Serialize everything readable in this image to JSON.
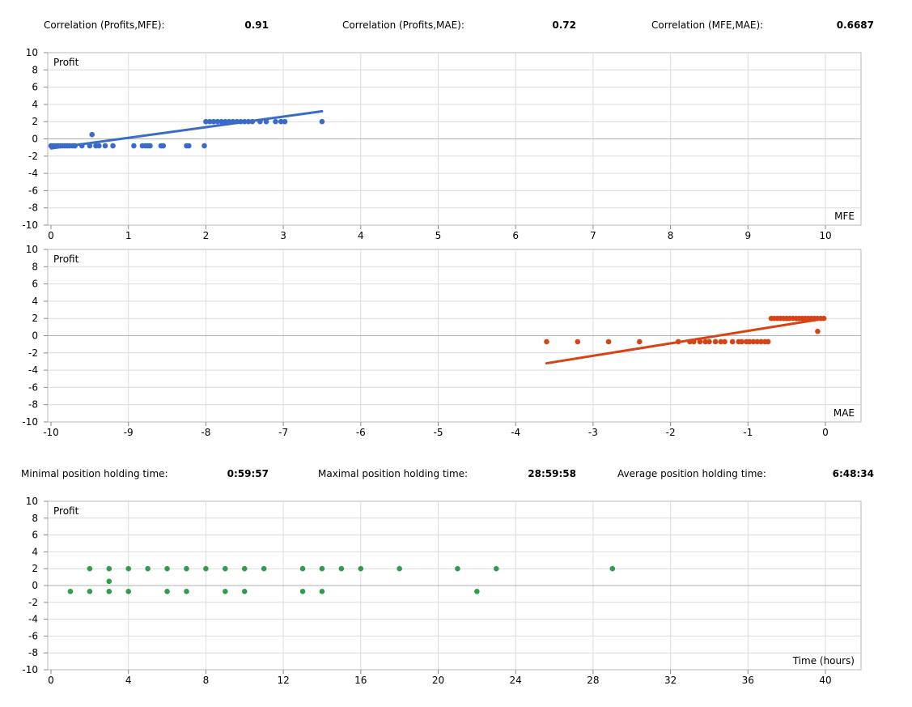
{
  "stats": {
    "corr_profits_mfe": {
      "label": "Correlation (Profits,MFE):",
      "value": "0.91"
    },
    "corr_profits_mae": {
      "label": "Correlation (Profits,MAE):",
      "value": "0.72"
    },
    "corr_mfe_mae": {
      "label": "Correlation (MFE,MAE):",
      "value": "0.6687"
    },
    "min_hold": {
      "label": "Minimal position holding time:",
      "value": "0:59:57"
    },
    "max_hold": {
      "label": "Maximal position holding time:",
      "value": "28:59:58"
    },
    "avg_hold": {
      "label": "Average position holding time:",
      "value": "6:48:34"
    }
  },
  "chart_data": [
    {
      "type": "scatter",
      "ylabel": "Profit",
      "xlabel": "MFE",
      "xlim": [
        0,
        10
      ],
      "ylim": [
        -10,
        10
      ],
      "xticks": [
        0,
        1,
        2,
        3,
        4,
        5,
        6,
        7,
        8,
        9,
        10
      ],
      "yticks": [
        -10,
        -8,
        -6,
        -4,
        -2,
        0,
        2,
        4,
        6,
        8,
        10
      ],
      "grid": true,
      "color": "#3a6bc8",
      "points": [
        [
          0.0,
          -0.8
        ],
        [
          0.03,
          -0.8
        ],
        [
          0.06,
          -0.8
        ],
        [
          0.09,
          -0.8
        ],
        [
          0.12,
          -0.8
        ],
        [
          0.15,
          -0.8
        ],
        [
          0.18,
          -0.8
        ],
        [
          0.21,
          -0.8
        ],
        [
          0.24,
          -0.8
        ],
        [
          0.28,
          -0.8
        ],
        [
          0.31,
          -0.8
        ],
        [
          0.4,
          -0.8
        ],
        [
          0.5,
          -0.8
        ],
        [
          0.53,
          0.5
        ],
        [
          0.58,
          -0.8
        ],
        [
          0.62,
          -0.8
        ],
        [
          0.7,
          -0.8
        ],
        [
          0.8,
          -0.8
        ],
        [
          1.07,
          -0.8
        ],
        [
          1.18,
          -0.8
        ],
        [
          1.22,
          -0.8
        ],
        [
          1.25,
          -0.8
        ],
        [
          1.28,
          -0.8
        ],
        [
          1.42,
          -0.8
        ],
        [
          1.45,
          -0.8
        ],
        [
          1.75,
          -0.8
        ],
        [
          1.78,
          -0.8
        ],
        [
          1.98,
          -0.8
        ],
        [
          2.0,
          2.0
        ],
        [
          2.05,
          2.0
        ],
        [
          2.1,
          2.0
        ],
        [
          2.15,
          2.0
        ],
        [
          2.2,
          2.0
        ],
        [
          2.25,
          2.0
        ],
        [
          2.3,
          2.0
        ],
        [
          2.35,
          2.0
        ],
        [
          2.4,
          2.0
        ],
        [
          2.45,
          2.0
        ],
        [
          2.5,
          2.0
        ],
        [
          2.55,
          2.0
        ],
        [
          2.6,
          2.0
        ],
        [
          2.7,
          2.0
        ],
        [
          2.78,
          2.0
        ],
        [
          2.9,
          2.0
        ],
        [
          2.97,
          2.0
        ],
        [
          3.02,
          2.0
        ],
        [
          3.5,
          2.0
        ]
      ],
      "trend": [
        [
          0,
          -1.1
        ],
        [
          3.5,
          3.2
        ]
      ]
    },
    {
      "type": "scatter",
      "ylabel": "Profit",
      "xlabel": "MAE",
      "xlim": [
        -10,
        0
      ],
      "ylim": [
        -10,
        10
      ],
      "xticks": [
        -10,
        -9,
        -8,
        -7,
        -6,
        -5,
        -4,
        -3,
        -2,
        -1,
        0
      ],
      "yticks": [
        -10,
        -8,
        -6,
        -4,
        -2,
        0,
        2,
        4,
        6,
        8,
        10
      ],
      "grid": true,
      "color": "#d84315",
      "points": [
        [
          -3.6,
          -0.7
        ],
        [
          -3.2,
          -0.7
        ],
        [
          -2.8,
          -0.7
        ],
        [
          -2.4,
          -0.7
        ],
        [
          -1.9,
          -0.7
        ],
        [
          -1.75,
          -0.7
        ],
        [
          -1.7,
          -0.7
        ],
        [
          -1.62,
          -0.7
        ],
        [
          -1.55,
          -0.7
        ],
        [
          -1.5,
          -0.7
        ],
        [
          -1.42,
          -0.7
        ],
        [
          -1.35,
          -0.7
        ],
        [
          -1.3,
          -0.7
        ],
        [
          -1.2,
          -0.7
        ],
        [
          -1.12,
          -0.7
        ],
        [
          -1.08,
          -0.7
        ],
        [
          -1.02,
          -0.7
        ],
        [
          -0.98,
          -0.7
        ],
        [
          -0.93,
          -0.7
        ],
        [
          -0.88,
          -0.7
        ],
        [
          -0.83,
          -0.7
        ],
        [
          -0.78,
          -0.7
        ],
        [
          -0.74,
          -0.7
        ],
        [
          -0.7,
          2.0
        ],
        [
          -0.66,
          2.0
        ],
        [
          -0.62,
          2.0
        ],
        [
          -0.58,
          2.0
        ],
        [
          -0.54,
          2.0
        ],
        [
          -0.5,
          2.0
        ],
        [
          -0.46,
          2.0
        ],
        [
          -0.42,
          2.0
        ],
        [
          -0.38,
          2.0
        ],
        [
          -0.34,
          2.0
        ],
        [
          -0.3,
          2.0
        ],
        [
          -0.26,
          2.0
        ],
        [
          -0.22,
          2.0
        ],
        [
          -0.18,
          2.0
        ],
        [
          -0.14,
          2.0
        ],
        [
          -0.1,
          2.0
        ],
        [
          -0.06,
          2.0
        ],
        [
          -0.02,
          2.0
        ],
        [
          -0.1,
          0.5
        ]
      ],
      "trend": [
        [
          -3.6,
          -3.2
        ],
        [
          0,
          2.0
        ]
      ]
    },
    {
      "type": "scatter",
      "ylabel": "Profit",
      "xlabel": "Time (hours)",
      "xlim": [
        0,
        40
      ],
      "ylim": [
        -10,
        10
      ],
      "xticks": [
        0,
        4,
        8,
        12,
        16,
        20,
        24,
        28,
        32,
        36,
        40
      ],
      "yticks": [
        -10,
        -8,
        -6,
        -4,
        -2,
        0,
        2,
        4,
        6,
        8,
        10
      ],
      "grid": true,
      "color": "#2e9e4a",
      "points": [
        [
          1,
          -0.7
        ],
        [
          2,
          2.0
        ],
        [
          2,
          -0.7
        ],
        [
          3,
          2.0
        ],
        [
          3,
          0.5
        ],
        [
          3,
          -0.7
        ],
        [
          4,
          2.0
        ],
        [
          4,
          -0.7
        ],
        [
          5,
          2.0
        ],
        [
          6,
          2.0
        ],
        [
          6,
          -0.7
        ],
        [
          7,
          2.0
        ],
        [
          7,
          -0.7
        ],
        [
          8,
          2.0
        ],
        [
          9,
          2.0
        ],
        [
          9,
          -0.7
        ],
        [
          10,
          2.0
        ],
        [
          10,
          -0.7
        ],
        [
          11,
          2.0
        ],
        [
          13,
          2.0
        ],
        [
          13,
          -0.7
        ],
        [
          14,
          2.0
        ],
        [
          14,
          -0.7
        ],
        [
          15,
          2.0
        ],
        [
          16,
          2.0
        ],
        [
          18,
          2.0
        ],
        [
          21,
          2.0
        ],
        [
          22,
          -0.7
        ],
        [
          23,
          2.0
        ],
        [
          29,
          2.0
        ]
      ]
    }
  ]
}
